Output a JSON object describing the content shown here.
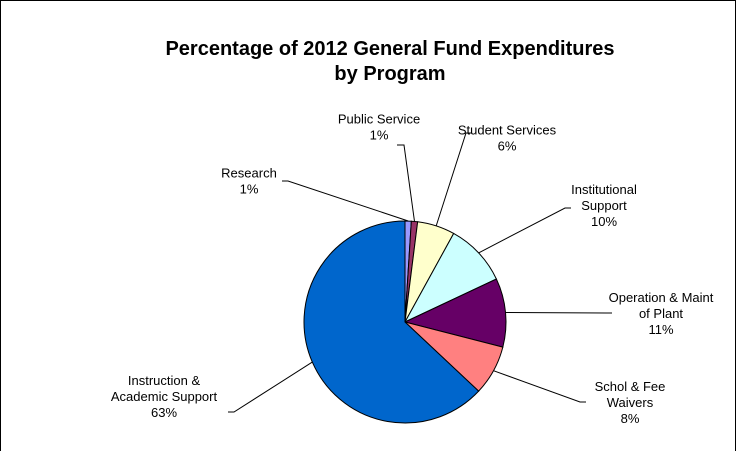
{
  "chart_data": {
    "type": "pie",
    "title": [
      "Percentage of 2012 General Fund Expenditures",
      "by Program"
    ],
    "slices": [
      {
        "name": [
          "Research"
        ],
        "value": 1,
        "label": "1%",
        "color": "#9999ff"
      },
      {
        "name": [
          "Public Service"
        ],
        "value": 1,
        "label": "1%",
        "color": "#993366"
      },
      {
        "name": [
          "Student Services"
        ],
        "value": 6,
        "label": "6%",
        "color": "#ffffcc"
      },
      {
        "name": [
          "Institutional",
          "Support"
        ],
        "value": 10,
        "label": "10%",
        "color": "#ccffff"
      },
      {
        "name": [
          "Operation & Maint",
          "of Plant"
        ],
        "value": 11,
        "label": "11%",
        "color": "#660066"
      },
      {
        "name": [
          "Schol & Fee",
          "Waivers"
        ],
        "value": 8,
        "label": "8%",
        "color": "#ff8080"
      },
      {
        "name": [
          "Instruction &",
          "Academic Support"
        ],
        "value": 63,
        "label": "63%",
        "color": "#0066cc"
      }
    ],
    "legend": "none"
  }
}
